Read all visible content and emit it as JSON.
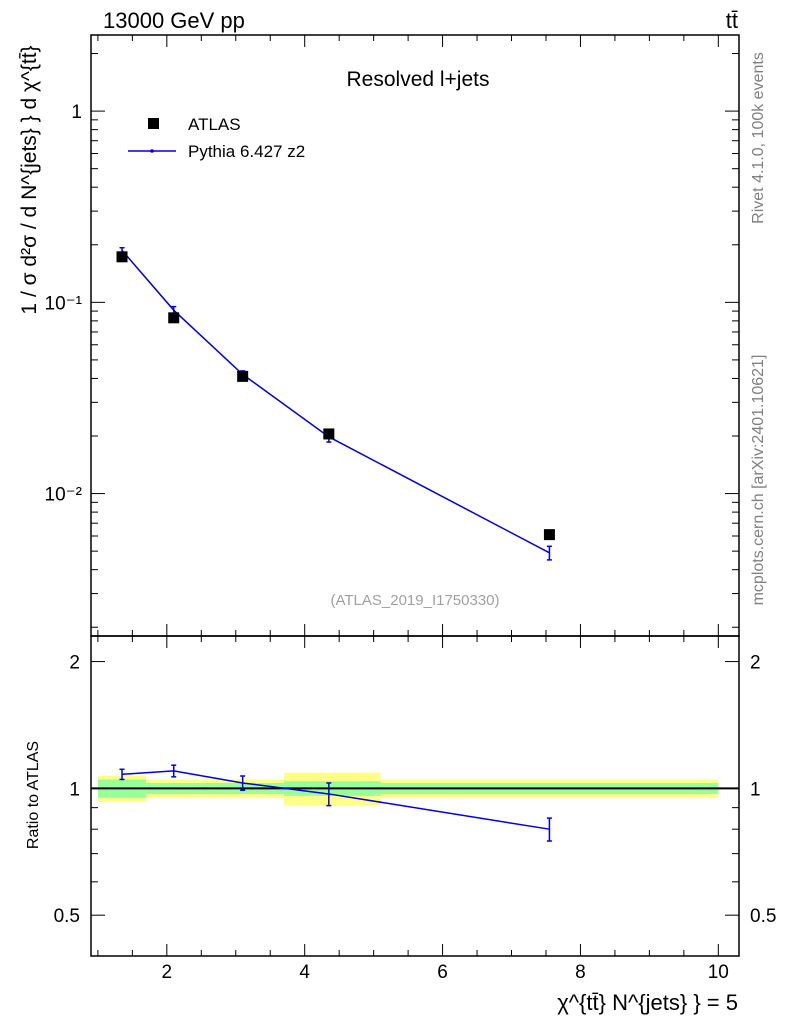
{
  "header": {
    "beam": "13000 GeV pp",
    "process": "tt̄"
  },
  "side_labels": {
    "rivet": "Rivet 4.1.0,  100k events",
    "mcplots": "mcplots.cern.ch [arXiv:2401.10621]"
  },
  "colors": {
    "data": "#000000",
    "mc": "#0000dd",
    "band_inner": "#99ff99",
    "band_outer": "#ffff88"
  },
  "chart_data": [
    {
      "type": "scatter",
      "panel": "main",
      "title": "Resolved l+jets",
      "ylabel": "1 / σ d²σ / d N^{jets} } d χ^{tt̄}",
      "yscale": "log",
      "xlim": [
        0.9,
        10.3
      ],
      "ylim": [
        0.0018,
        2.5
      ],
      "watermark": "(ATLAS_2019_I1750330)",
      "legend_position": "top-left",
      "y_tick_labels": [
        "1",
        "10⁻¹",
        "10⁻²"
      ],
      "series": [
        {
          "name": "ATLAS",
          "style": "marker",
          "x": [
            1.35,
            2.1,
            3.1,
            4.35,
            7.55
          ],
          "y": [
            0.173,
            0.083,
            0.041,
            0.0205,
            0.0061
          ]
        },
        {
          "name": "Pythia 6.427 z2",
          "style": "line",
          "x": [
            1.35,
            2.1,
            3.1,
            4.35,
            7.55
          ],
          "y": [
            0.187,
            0.091,
            0.042,
            0.0198,
            0.0049
          ],
          "err": [
            0.006,
            0.004,
            0.0018,
            0.0012,
            0.0004
          ]
        }
      ]
    },
    {
      "type": "line",
      "panel": "ratio",
      "xlabel": "χ^{tt̄} N^{jets} } = 5",
      "ylabel": "Ratio to ATLAS",
      "xlim": [
        0.9,
        10.3
      ],
      "ylim": [
        0.4,
        2.3
      ],
      "x_tick_labels": [
        "2",
        "4",
        "6",
        "8",
        "10"
      ],
      "y_tick_labels": [
        "0.5",
        "1",
        "2"
      ],
      "bins": [
        [
          1.0,
          1.7
        ],
        [
          1.7,
          2.5
        ],
        [
          2.5,
          3.7
        ],
        [
          3.7,
          5.1
        ],
        [
          5.1,
          10.0
        ]
      ],
      "band_inner": [
        0.05,
        0.03,
        0.03,
        0.04,
        0.03
      ],
      "band_outer": [
        0.07,
        0.05,
        0.05,
        0.09,
        0.05
      ],
      "series": [
        {
          "name": "Pythia 6.427 z2",
          "x": [
            1.35,
            2.1,
            3.1,
            4.35,
            7.55
          ],
          "y": [
            1.08,
            1.1,
            1.03,
            0.97,
            0.8
          ],
          "err": [
            0.03,
            0.035,
            0.04,
            0.06,
            0.05
          ]
        }
      ]
    }
  ]
}
